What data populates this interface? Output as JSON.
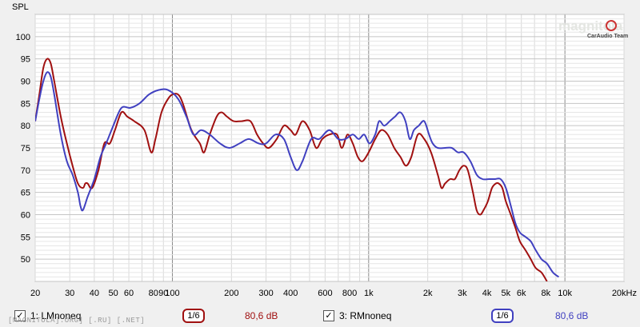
{
  "chart_data": {
    "type": "line",
    "ylabel": "SPL",
    "xscale": "log",
    "xlim": [
      20,
      20000
    ],
    "ylim": [
      45,
      105
    ],
    "x_ticks": [
      {
        "v": 20,
        "label": "20"
      },
      {
        "v": 30,
        "label": "30"
      },
      {
        "v": 40,
        "label": "40"
      },
      {
        "v": 50,
        "label": "50"
      },
      {
        "v": 60,
        "label": "60"
      },
      {
        "v": 80,
        "label": "80"
      },
      {
        "v": 90,
        "label": "90"
      },
      {
        "v": 100,
        "label": "100"
      },
      {
        "v": 200,
        "label": "200"
      },
      {
        "v": 300,
        "label": "300"
      },
      {
        "v": 400,
        "label": "400"
      },
      {
        "v": 600,
        "label": "600"
      },
      {
        "v": 800,
        "label": "800"
      },
      {
        "v": 1000,
        "label": "1k"
      },
      {
        "v": 2000,
        "label": "2k"
      },
      {
        "v": 3000,
        "label": "3k"
      },
      {
        "v": 4000,
        "label": "4k"
      },
      {
        "v": 5000,
        "label": "5k"
      },
      {
        "v": 6000,
        "label": "6k"
      },
      {
        "v": 8000,
        "label": "8k"
      },
      {
        "v": 10000,
        "label": "10k"
      },
      {
        "v": 20000,
        "label": "20kHz"
      }
    ],
    "y_ticks": [
      50,
      55,
      60,
      65,
      70,
      75,
      80,
      85,
      90,
      95,
      100
    ],
    "grid": true,
    "series": [
      {
        "name": "1: LMnoneq",
        "color": "#a01010",
        "smoothing": "1/6",
        "level": "80,6 dB",
        "points": [
          [
            20,
            81
          ],
          [
            21,
            87
          ],
          [
            22,
            93
          ],
          [
            23,
            95
          ],
          [
            24,
            94
          ],
          [
            25,
            90
          ],
          [
            27,
            82
          ],
          [
            29,
            76
          ],
          [
            31,
            71
          ],
          [
            33,
            67
          ],
          [
            35,
            66
          ],
          [
            36,
            67
          ],
          [
            37,
            67
          ],
          [
            39,
            66
          ],
          [
            42,
            70
          ],
          [
            45,
            76
          ],
          [
            48,
            76
          ],
          [
            51,
            79
          ],
          [
            55,
            83
          ],
          [
            59,
            82
          ],
          [
            64,
            81
          ],
          [
            72,
            79
          ],
          [
            78,
            74
          ],
          [
            82,
            77
          ],
          [
            88,
            83
          ],
          [
            95,
            86
          ],
          [
            100,
            87
          ],
          [
            107,
            87
          ],
          [
            113,
            85
          ],
          [
            125,
            79
          ],
          [
            138,
            76
          ],
          [
            145,
            74
          ],
          [
            155,
            78
          ],
          [
            168,
            82
          ],
          [
            178,
            83
          ],
          [
            190,
            82
          ],
          [
            205,
            81
          ],
          [
            225,
            81
          ],
          [
            250,
            81
          ],
          [
            270,
            78
          ],
          [
            290,
            76
          ],
          [
            310,
            75
          ],
          [
            340,
            77
          ],
          [
            370,
            80
          ],
          [
            400,
            79
          ],
          [
            425,
            78
          ],
          [
            460,
            81
          ],
          [
            500,
            79
          ],
          [
            540,
            75
          ],
          [
            580,
            77
          ],
          [
            630,
            78
          ],
          [
            690,
            78
          ],
          [
            730,
            75
          ],
          [
            780,
            78
          ],
          [
            830,
            76
          ],
          [
            880,
            73
          ],
          [
            930,
            72
          ],
          [
            1000,
            74
          ],
          [
            1080,
            77
          ],
          [
            1160,
            79
          ],
          [
            1250,
            78
          ],
          [
            1350,
            75
          ],
          [
            1450,
            73
          ],
          [
            1550,
            71
          ],
          [
            1650,
            73
          ],
          [
            1780,
            78
          ],
          [
            1920,
            77
          ],
          [
            2080,
            74
          ],
          [
            2250,
            69
          ],
          [
            2350,
            66
          ],
          [
            2450,
            67
          ],
          [
            2600,
            68
          ],
          [
            2750,
            68
          ],
          [
            2900,
            70
          ],
          [
            3050,
            71
          ],
          [
            3200,
            70
          ],
          [
            3400,
            65
          ],
          [
            3550,
            61
          ],
          [
            3700,
            60
          ],
          [
            3850,
            61
          ],
          [
            4050,
            63
          ],
          [
            4250,
            66
          ],
          [
            4450,
            67
          ],
          [
            4600,
            67
          ],
          [
            4800,
            66
          ],
          [
            5000,
            63
          ],
          [
            5300,
            60
          ],
          [
            5600,
            57
          ],
          [
            5900,
            54
          ],
          [
            6300,
            52
          ],
          [
            6700,
            50
          ],
          [
            7100,
            48
          ],
          [
            7600,
            47
          ],
          [
            8100,
            45
          ]
        ]
      },
      {
        "name": "3: RMnoneq",
        "color": "#4040c0",
        "smoothing": "1/6",
        "level": "80,6 dB",
        "points": [
          [
            20,
            81
          ],
          [
            21,
            86
          ],
          [
            22,
            90
          ],
          [
            23,
            92
          ],
          [
            24,
            91
          ],
          [
            25,
            87
          ],
          [
            27,
            78
          ],
          [
            29,
            72
          ],
          [
            31,
            69
          ],
          [
            33,
            65
          ],
          [
            34,
            62
          ],
          [
            35,
            61
          ],
          [
            37,
            64
          ],
          [
            40,
            68
          ],
          [
            43,
            73
          ],
          [
            46,
            76
          ],
          [
            50,
            80
          ],
          [
            55,
            84
          ],
          [
            61,
            84
          ],
          [
            68,
            85
          ],
          [
            76,
            87
          ],
          [
            85,
            88
          ],
          [
            95,
            88
          ],
          [
            107,
            86
          ],
          [
            118,
            82
          ],
          [
            128,
            78
          ],
          [
            140,
            79
          ],
          [
            155,
            78
          ],
          [
            175,
            76
          ],
          [
            195,
            75
          ],
          [
            220,
            76
          ],
          [
            245,
            77
          ],
          [
            275,
            76
          ],
          [
            300,
            76
          ],
          [
            335,
            78
          ],
          [
            370,
            77
          ],
          [
            400,
            73
          ],
          [
            430,
            70
          ],
          [
            460,
            72
          ],
          [
            510,
            77
          ],
          [
            560,
            77
          ],
          [
            630,
            79
          ],
          [
            700,
            77
          ],
          [
            760,
            77
          ],
          [
            830,
            78
          ],
          [
            890,
            77
          ],
          [
            950,
            78
          ],
          [
            1010,
            76
          ],
          [
            1080,
            78
          ],
          [
            1130,
            81
          ],
          [
            1200,
            80
          ],
          [
            1280,
            81
          ],
          [
            1360,
            82
          ],
          [
            1450,
            83
          ],
          [
            1540,
            81
          ],
          [
            1620,
            77
          ],
          [
            1700,
            79
          ],
          [
            1800,
            80
          ],
          [
            1920,
            81
          ],
          [
            2030,
            78
          ],
          [
            2120,
            76
          ],
          [
            2250,
            75
          ],
          [
            2450,
            75
          ],
          [
            2650,
            75
          ],
          [
            2850,
            74
          ],
          [
            3050,
            74
          ],
          [
            3300,
            72
          ],
          [
            3550,
            69
          ],
          [
            3800,
            68
          ],
          [
            4100,
            68
          ],
          [
            4400,
            68
          ],
          [
            4700,
            68
          ],
          [
            5000,
            66
          ],
          [
            5300,
            62
          ],
          [
            5600,
            58
          ],
          [
            5900,
            56
          ],
          [
            6300,
            55
          ],
          [
            6700,
            54
          ],
          [
            7100,
            52
          ],
          [
            7600,
            50
          ],
          [
            8100,
            49
          ],
          [
            8700,
            47
          ],
          [
            9300,
            46
          ]
        ]
      }
    ]
  },
  "legend": {
    "items": [
      {
        "checked": "✓",
        "name": "1: LMnoneq",
        "smoothing": "1/6",
        "level": "80,6 dB"
      },
      {
        "checked": "✓",
        "name": "3: RMnoneq",
        "smoothing": "1/6",
        "level": "80,6 dB"
      }
    ]
  },
  "footer": "[MAGNITOLA].ORG] [.RU] [.NET]",
  "logo": {
    "main": "magnitola",
    "sub": "CarAudio Team"
  },
  "colors": {
    "plot_bg": "#ffffff",
    "grid": "#d8d8d8",
    "grid_major": "#8a8a8a",
    "page_bg": "#f0f0f0"
  }
}
